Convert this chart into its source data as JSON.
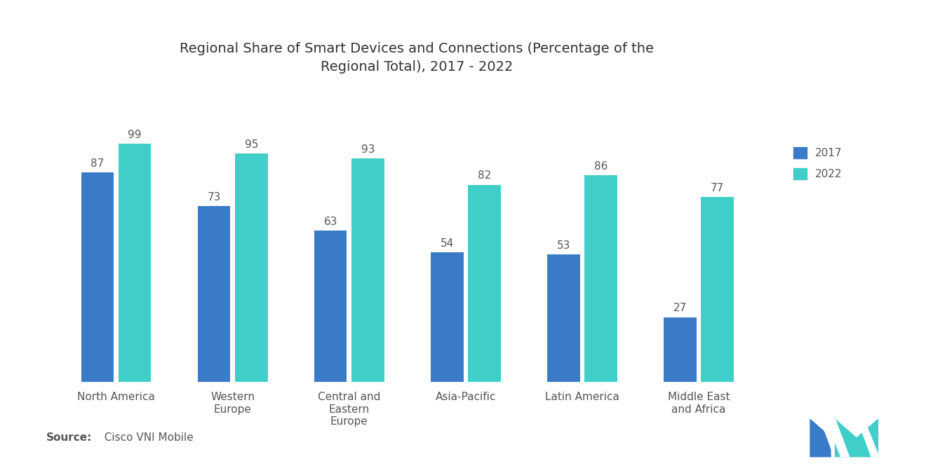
{
  "title": "Regional Share of Smart Devices and Connections (Percentage of the\nRegional Total), 2017 - 2022",
  "categories": [
    "North America",
    "Western\nEurope",
    "Central and\nEastern\nEurope",
    "Asia-Pacific",
    "Latin America",
    "Middle East\nand Africa"
  ],
  "values_2017": [
    87,
    73,
    63,
    54,
    53,
    27
  ],
  "values_2022": [
    99,
    95,
    93,
    82,
    86,
    77
  ],
  "color_2017": "#3a7bc8",
  "color_2022": "#40cfc8",
  "legend_labels": [
    "2017",
    "2022"
  ],
  "source_bold": "Source:",
  "source_text": "  Cisco VNI Mobile",
  "title_fontsize": 14,
  "label_fontsize": 11,
  "tick_fontsize": 11,
  "source_fontsize": 11,
  "bar_width": 0.28,
  "bar_gap": 0.04,
  "ylim": [
    0,
    120
  ],
  "background_color": "#ffffff"
}
